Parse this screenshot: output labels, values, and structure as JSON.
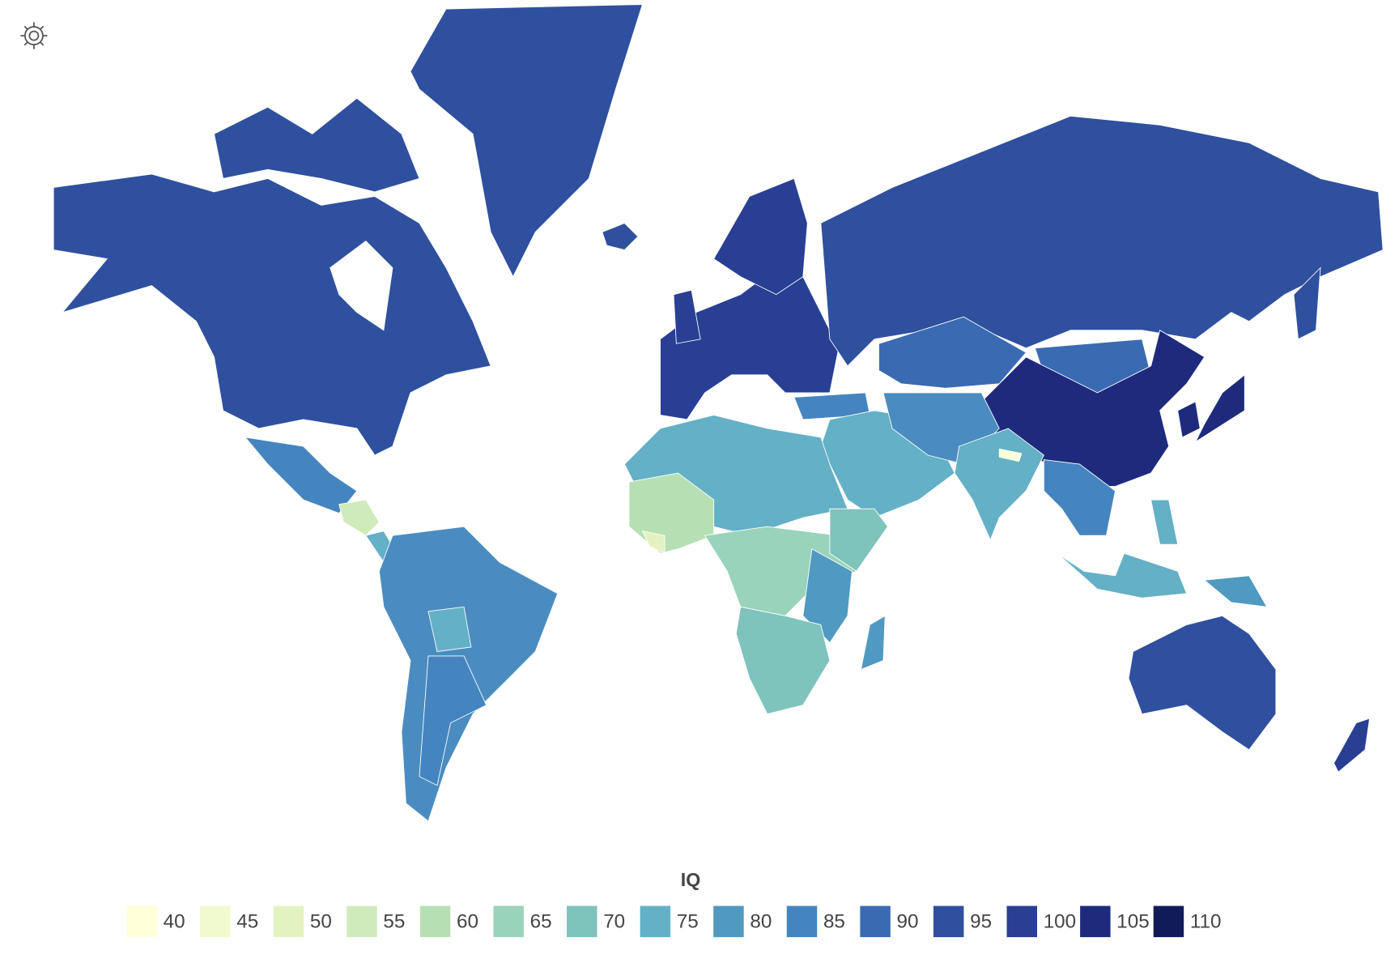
{
  "legend": {
    "title": "IQ",
    "items": [
      {
        "value": 40,
        "color": "#ffffd9"
      },
      {
        "value": 45,
        "color": "#f1f9cf"
      },
      {
        "value": 50,
        "color": "#e3f3c0"
      },
      {
        "value": 55,
        "color": "#d0ebbb"
      },
      {
        "value": 60,
        "color": "#b6e0b4"
      },
      {
        "value": 65,
        "color": "#99d3bb"
      },
      {
        "value": 70,
        "color": "#7fc3bd"
      },
      {
        "value": 75,
        "color": "#64b0c6"
      },
      {
        "value": 80,
        "color": "#5099c0"
      },
      {
        "value": 85,
        "color": "#4585bf"
      },
      {
        "value": 90,
        "color": "#3a6ab2"
      },
      {
        "value": 95,
        "color": "#2f509e"
      },
      {
        "value": 100,
        "color": "#283f94"
      },
      {
        "value": 105,
        "color": "#1e2b7d"
      },
      {
        "value": 110,
        "color": "#111b5a"
      }
    ]
  }
}
